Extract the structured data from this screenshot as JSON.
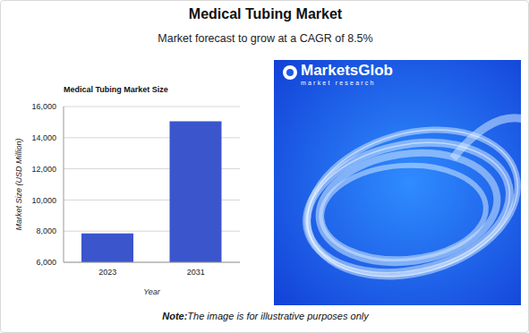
{
  "header": {
    "title": "Medical Tubing Market",
    "subtitle": "Market forecast to grow at a CAGR of 8.5%"
  },
  "chart_data": {
    "type": "bar",
    "title": "Medical Tubing Market Size",
    "x_label": "Year",
    "y_label": "Market Size (USD Million)",
    "categories": [
      "2023",
      "2031"
    ],
    "values": [
      7850,
      15050
    ],
    "color": "#3b55cc",
    "ylim": [
      6000,
      16000
    ],
    "yticks": [
      {
        "value": 6000,
        "label": "6,000"
      },
      {
        "value": 8000,
        "label": "8,000"
      },
      {
        "value": 10000,
        "label": "10,000"
      },
      {
        "value": 12000,
        "label": "12,000"
      },
      {
        "value": 14000,
        "label": "14,000"
      },
      {
        "value": 16000,
        "label": "16,000"
      }
    ],
    "grid": true
  },
  "image": {
    "logo": "MarketsGlob",
    "tagline": "market research"
  },
  "note": {
    "label": "Note:",
    "text": "The image is for illustrative purposes only"
  }
}
